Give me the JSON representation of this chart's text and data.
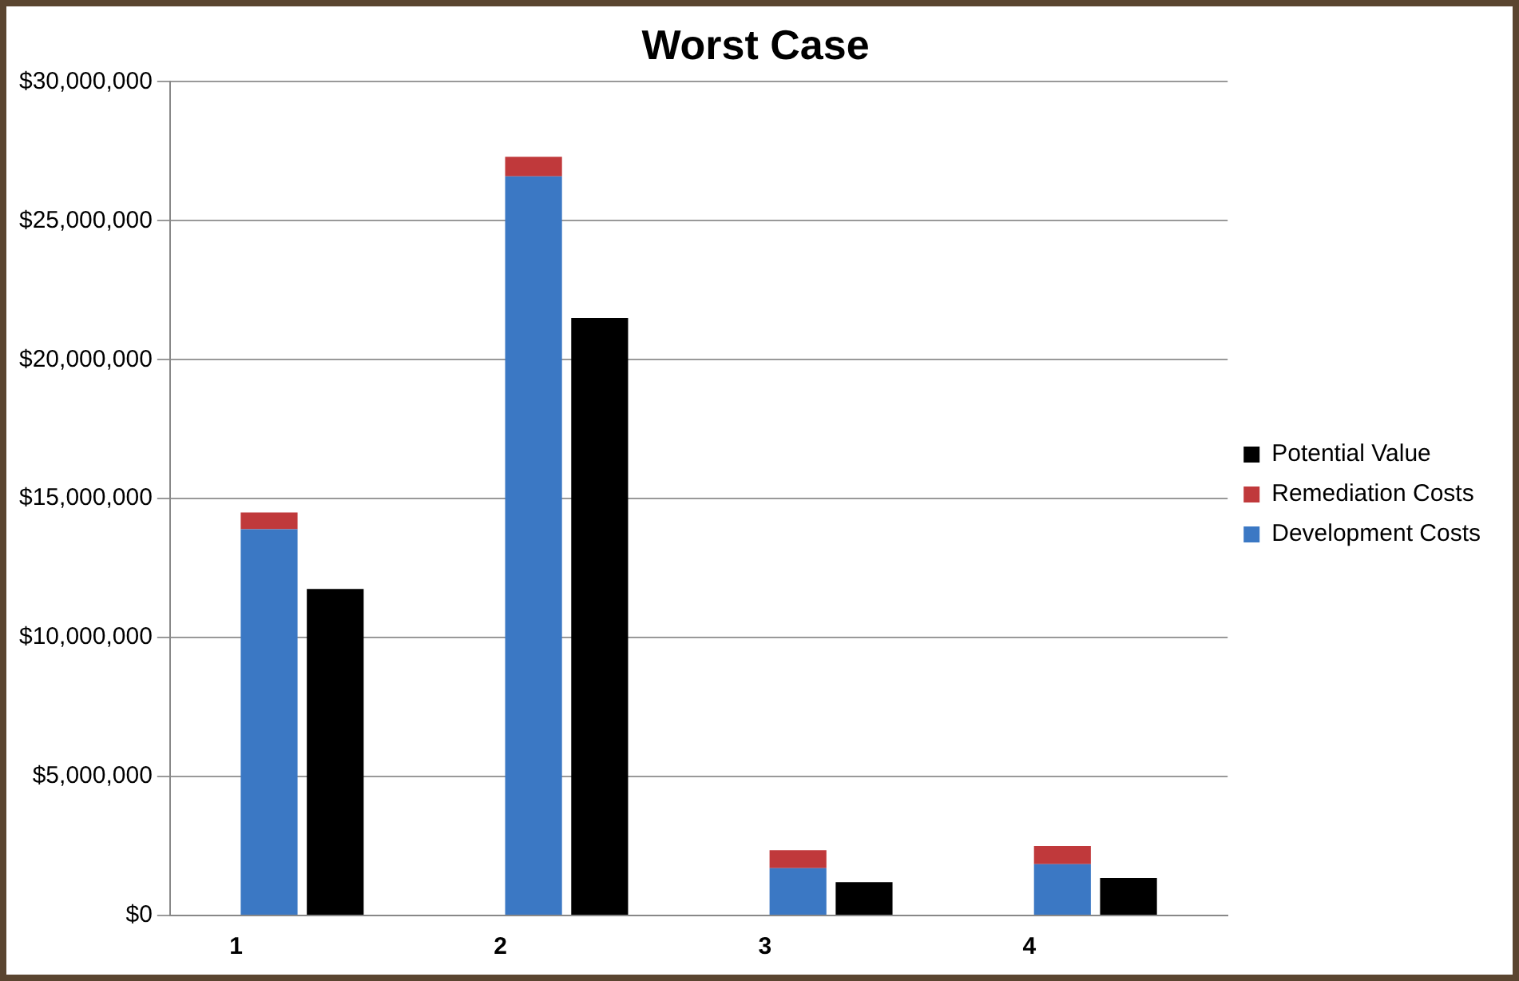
{
  "chart_data": {
    "type": "bar",
    "title": "Worst Case",
    "categories": [
      "1",
      null,
      "2",
      null,
      "3",
      null,
      "4",
      null
    ],
    "stacked": true,
    "series": [
      {
        "name": "Development Costs",
        "color": "#3b78c4",
        "values": [
          13900000,
          null,
          26600000,
          null,
          1700000,
          null,
          1850000,
          null
        ]
      },
      {
        "name": "Remediation Costs",
        "color": "#c0393b",
        "values": [
          600000,
          null,
          700000,
          null,
          650000,
          null,
          650000,
          null
        ]
      },
      {
        "name": "Potential Value",
        "color": "#000000",
        "values": [
          null,
          11750000,
          null,
          21500000,
          null,
          1200000,
          null,
          1350000
        ]
      }
    ],
    "ylim": [
      0,
      30000000
    ],
    "yticks": [
      {
        "value": 0,
        "label": "$0"
      },
      {
        "value": 5000000,
        "label": "$5,000,000"
      },
      {
        "value": 10000000,
        "label": "$10,000,000"
      },
      {
        "value": 15000000,
        "label": "$15,000,000"
      },
      {
        "value": 20000000,
        "label": "$20,000,000"
      },
      {
        "value": 25000000,
        "label": "$25,000,000"
      },
      {
        "value": 30000000,
        "label": "$30,000,000"
      }
    ],
    "grid": "y",
    "legend": "right"
  }
}
